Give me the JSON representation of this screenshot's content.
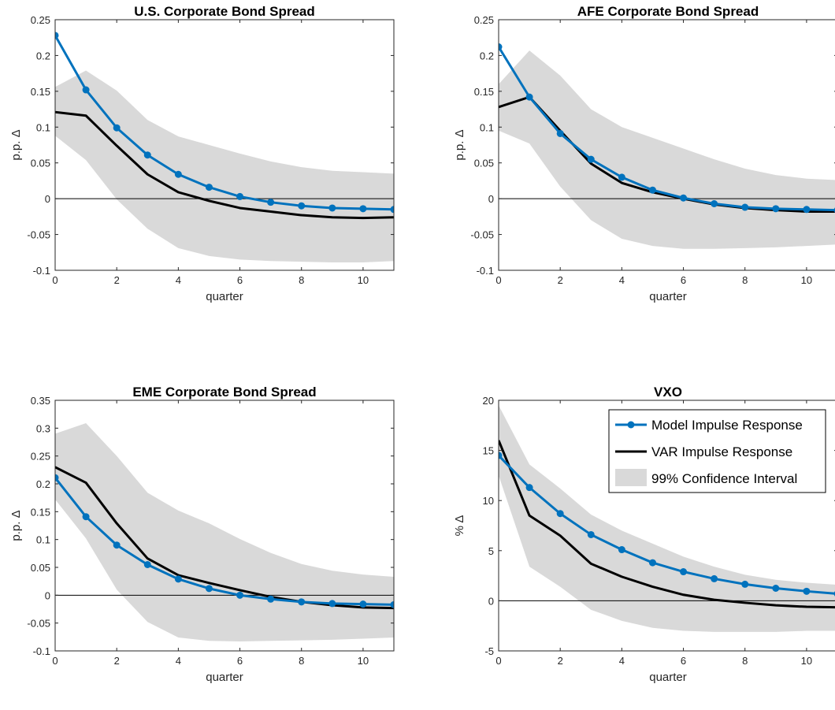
{
  "colors": {
    "model": "#0072BD",
    "var": "#000000",
    "band": "#d9d9d9",
    "zero": "#000000"
  },
  "legend": {
    "placement": "top-right of VXO panel",
    "entries": [
      "Model Impulse Response",
      "VAR Impulse Response",
      "99% Confidence Interval"
    ]
  },
  "chart_data": [
    {
      "type": "line",
      "title": "U.S. Corporate Bond Spread",
      "xlabel": "quarter",
      "ylabel": "p.p. Δ",
      "xlim": [
        0,
        11
      ],
      "ylim": [
        -0.1,
        0.25
      ],
      "xticks": [
        "0",
        "2",
        "4",
        "6",
        "8",
        "10"
      ],
      "yticks": [
        "-0.1",
        "-0.05",
        "0",
        "0.05",
        "0.1",
        "0.15",
        "0.2",
        "0.25"
      ],
      "x": [
        0,
        1,
        2,
        3,
        4,
        5,
        6,
        7,
        8,
        9,
        10,
        11
      ],
      "series": [
        {
          "name": "Model Impulse Response",
          "values": [
            0.228,
            0.152,
            0.099,
            0.061,
            0.034,
            0.016,
            0.003,
            -0.005,
            -0.01,
            -0.013,
            -0.014,
            -0.015
          ]
        },
        {
          "name": "VAR Impulse Response",
          "values": [
            0.121,
            0.116,
            0.074,
            0.034,
            0.009,
            -0.003,
            -0.013,
            -0.018,
            -0.023,
            -0.026,
            -0.027,
            -0.026
          ]
        }
      ],
      "band": {
        "name": "99% Confidence Interval",
        "upper": [
          0.156,
          0.179,
          0.151,
          0.11,
          0.087,
          0.075,
          0.063,
          0.052,
          0.044,
          0.039,
          0.037,
          0.035
        ],
        "lower": [
          0.088,
          0.054,
          -0.001,
          -0.042,
          -0.069,
          -0.08,
          -0.085,
          -0.087,
          -0.088,
          -0.089,
          -0.089,
          -0.087
        ]
      }
    },
    {
      "type": "line",
      "title": "AFE Corporate Bond Spread",
      "xlabel": "quarter",
      "ylabel": "p.p. Δ",
      "xlim": [
        0,
        11
      ],
      "ylim": [
        -0.1,
        0.25
      ],
      "xticks": [
        "0",
        "2",
        "4",
        "6",
        "8",
        "10"
      ],
      "yticks": [
        "-0.1",
        "-0.05",
        "0",
        "0.05",
        "0.1",
        "0.15",
        "0.2",
        "0.25"
      ],
      "x": [
        0,
        1,
        2,
        3,
        4,
        5,
        6,
        7,
        8,
        9,
        10,
        11
      ],
      "series": [
        {
          "name": "Model Impulse Response",
          "values": [
            0.212,
            0.142,
            0.091,
            0.055,
            0.03,
            0.012,
            0.001,
            -0.007,
            -0.012,
            -0.014,
            -0.015,
            -0.016
          ]
        },
        {
          "name": "VAR Impulse Response",
          "values": [
            0.128,
            0.142,
            0.095,
            0.049,
            0.022,
            0.009,
            0.0,
            -0.008,
            -0.013,
            -0.016,
            -0.018,
            -0.018
          ]
        }
      ],
      "band": {
        "name": "99% Confidence Interval",
        "upper": [
          0.16,
          0.207,
          0.172,
          0.125,
          0.1,
          0.085,
          0.07,
          0.055,
          0.042,
          0.033,
          0.028,
          0.026
        ],
        "lower": [
          0.095,
          0.077,
          0.017,
          -0.03,
          -0.056,
          -0.066,
          -0.07,
          -0.07,
          -0.069,
          -0.068,
          -0.066,
          -0.064
        ]
      }
    },
    {
      "type": "line",
      "title": "EME Corporate Bond Spread",
      "xlabel": "quarter",
      "ylabel": "p.p. Δ",
      "xlim": [
        0,
        11
      ],
      "ylim": [
        -0.1,
        0.35
      ],
      "xticks": [
        "0",
        "2",
        "4",
        "6",
        "8",
        "10"
      ],
      "yticks": [
        "-0.1",
        "-0.05",
        "0",
        "0.05",
        "0.1",
        "0.15",
        "0.2",
        "0.25",
        "0.3",
        "0.35"
      ],
      "x": [
        0,
        1,
        2,
        3,
        4,
        5,
        6,
        7,
        8,
        9,
        10,
        11
      ],
      "series": [
        {
          "name": "Model Impulse Response",
          "values": [
            0.211,
            0.141,
            0.09,
            0.055,
            0.029,
            0.012,
            0.0,
            -0.007,
            -0.012,
            -0.015,
            -0.016,
            -0.017
          ]
        },
        {
          "name": "VAR Impulse Response",
          "values": [
            0.23,
            0.202,
            0.129,
            0.066,
            0.036,
            0.022,
            0.009,
            -0.003,
            -0.012,
            -0.018,
            -0.022,
            -0.023
          ]
        }
      ],
      "band": {
        "name": "99% Confidence Interval",
        "upper": [
          0.29,
          0.309,
          0.25,
          0.184,
          0.152,
          0.129,
          0.101,
          0.076,
          0.056,
          0.044,
          0.037,
          0.033
        ],
        "lower": [
          0.172,
          0.102,
          0.01,
          -0.048,
          -0.076,
          -0.082,
          -0.083,
          -0.082,
          -0.081,
          -0.08,
          -0.078,
          -0.076
        ]
      }
    },
    {
      "type": "line",
      "title": "VXO",
      "xlabel": "quarter",
      "ylabel": "% Δ",
      "xlim": [
        0,
        11
      ],
      "ylim": [
        -5,
        20
      ],
      "xticks": [
        "0",
        "2",
        "4",
        "6",
        "8",
        "10"
      ],
      "yticks": [
        "-5",
        "0",
        "5",
        "10",
        "15",
        "20"
      ],
      "x": [
        0,
        1,
        2,
        3,
        4,
        5,
        6,
        7,
        8,
        9,
        10,
        11
      ],
      "series": [
        {
          "name": "Model Impulse Response",
          "values": [
            14.5,
            11.3,
            8.7,
            6.6,
            5.1,
            3.8,
            2.9,
            2.2,
            1.65,
            1.25,
            0.95,
            0.7
          ]
        },
        {
          "name": "VAR Impulse Response",
          "values": [
            16.0,
            8.5,
            6.5,
            3.7,
            2.4,
            1.4,
            0.6,
            0.1,
            -0.2,
            -0.45,
            -0.6,
            -0.65
          ]
        }
      ],
      "band": {
        "name": "99% Confidence Interval",
        "upper": [
          19.5,
          13.6,
          11.2,
          8.6,
          7.0,
          5.7,
          4.4,
          3.4,
          2.6,
          2.1,
          1.8,
          1.6
        ],
        "lower": [
          12.5,
          3.4,
          1.4,
          -0.9,
          -2.0,
          -2.7,
          -3.0,
          -3.1,
          -3.1,
          -3.1,
          -3.0,
          -3.0
        ]
      }
    }
  ]
}
